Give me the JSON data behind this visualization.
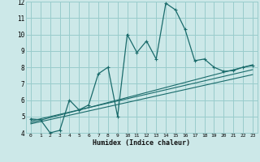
{
  "title": "",
  "xlabel": "Humidex (Indice chaleur)",
  "bg_color": "#cce8e8",
  "grid_color": "#99cccc",
  "line_color": "#1a6b6b",
  "xlim": [
    -0.5,
    23.5
  ],
  "ylim": [
    4,
    12
  ],
  "xticks": [
    0,
    1,
    2,
    3,
    4,
    5,
    6,
    7,
    8,
    9,
    10,
    11,
    12,
    13,
    14,
    15,
    16,
    17,
    18,
    19,
    20,
    21,
    22,
    23
  ],
  "yticks": [
    4,
    5,
    6,
    7,
    8,
    9,
    10,
    11,
    12
  ],
  "main_x": [
    0,
    1,
    2,
    3,
    4,
    5,
    6,
    7,
    8,
    9,
    10,
    11,
    12,
    13,
    14,
    15,
    16,
    17,
    18,
    19,
    20,
    21,
    22,
    23
  ],
  "main_y": [
    4.85,
    4.8,
    4.0,
    4.15,
    6.0,
    5.4,
    5.7,
    7.6,
    8.0,
    5.0,
    10.0,
    8.9,
    9.6,
    8.5,
    11.9,
    11.5,
    10.3,
    8.4,
    8.5,
    8.0,
    7.75,
    7.8,
    8.0,
    8.1
  ],
  "line1_x": [
    0,
    23
  ],
  "line1_y": [
    4.72,
    7.85
  ],
  "line2_x": [
    0,
    23
  ],
  "line2_y": [
    4.62,
    8.15
  ],
  "line3_x": [
    0,
    23
  ],
  "line3_y": [
    4.55,
    7.55
  ]
}
